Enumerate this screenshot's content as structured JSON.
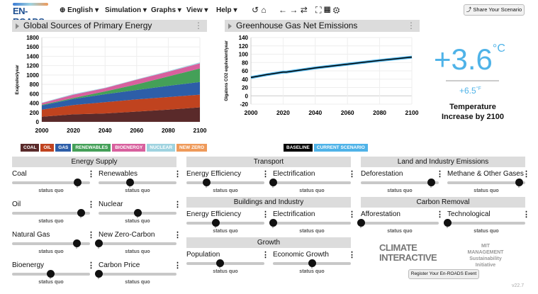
{
  "header": {
    "logo": "EN-ROADS",
    "language": "English",
    "menus": [
      "Simulation",
      "Graphs",
      "View",
      "Help"
    ],
    "share_label": "Share Your Scenario"
  },
  "energy_chart": {
    "title": "Global Sources of Primary Energy",
    "legend": [
      {
        "label": "COAL",
        "color": "#5a2a2a"
      },
      {
        "label": "OIL",
        "color": "#c0431f"
      },
      {
        "label": "GAS",
        "color": "#2d5ea8"
      },
      {
        "label": "RENEWABLES",
        "color": "#44a058"
      },
      {
        "label": "BIOENERGY",
        "color": "#d8609e"
      },
      {
        "label": "NUCLEAR",
        "color": "#9fd3e0"
      },
      {
        "label": "NEW ZERO",
        "color": "#ef9a5a"
      }
    ]
  },
  "emissions_chart": {
    "title": "Greenhouse Gas Net Emissions",
    "legend": [
      {
        "label": "BASELINE",
        "color": "#000000"
      },
      {
        "label": "CURRENT SCENARIO",
        "color": "#4fb3e8"
      }
    ]
  },
  "chart_data": [
    {
      "type": "area",
      "stacked": true,
      "title": "Global Sources of Primary Energy",
      "ylabel": "Exajoules/year",
      "x": [
        2000,
        2020,
        2040,
        2060,
        2080,
        2100
      ],
      "ylim": [
        0,
        1800
      ],
      "yticks": [
        0,
        200,
        400,
        600,
        800,
        1000,
        1200,
        1400,
        1600,
        1800
      ],
      "xticks": [
        2000,
        2020,
        2040,
        2060,
        2080,
        2100
      ],
      "grid": true,
      "series": [
        {
          "name": "COAL",
          "values": [
            110,
            160,
            180,
            220,
            260,
            310
          ]
        },
        {
          "name": "OIL",
          "values": [
            150,
            200,
            240,
            260,
            270,
            270
          ]
        },
        {
          "name": "GAS",
          "values": [
            90,
            130,
            170,
            200,
            240,
            270
          ]
        },
        {
          "name": "RENEWABLES",
          "values": [
            15,
            20,
            60,
            120,
            200,
            290
          ]
        },
        {
          "name": "BIOENERGY",
          "values": [
            35,
            70,
            70,
            100,
            100,
            110
          ]
        },
        {
          "name": "NUCLEAR",
          "values": [
            10,
            15,
            10,
            10,
            15,
            20
          ]
        },
        {
          "name": "NEW ZERO",
          "values": [
            0,
            0,
            0,
            0,
            0,
            0
          ]
        }
      ]
    },
    {
      "type": "line",
      "title": "Greenhouse Gas Net Emissions",
      "ylabel": "Gigatons CO2 equivalent/year",
      "x": [
        2000,
        2010,
        2020,
        2022,
        2040,
        2060,
        2080,
        2100
      ],
      "ylim": [
        -20,
        140
      ],
      "yticks": [
        -20,
        0,
        20,
        40,
        60,
        80,
        100,
        120,
        140
      ],
      "xticks": [
        2000,
        2020,
        2040,
        2060,
        2080,
        2100
      ],
      "grid": true,
      "series": [
        {
          "name": "CURRENT SCENARIO",
          "values": [
            44,
            51,
            57,
            57,
            67,
            76,
            85,
            93
          ]
        },
        {
          "name": "BASELINE",
          "values": [
            44,
            51,
            57,
            57,
            67,
            76,
            85,
            93
          ]
        }
      ]
    }
  ],
  "temperature": {
    "celsius": "+3.6",
    "c_unit": "°C",
    "fahrenheit": "+6.5",
    "f_unit": "°F",
    "caption": "Temperature Increase by 2100"
  },
  "sections": {
    "energy_supply": "Energy Supply",
    "transport": "Transport",
    "buildings": "Buildings and Industry",
    "growth": "Growth",
    "land": "Land and Industry Emissions",
    "removal": "Carbon Removal"
  },
  "status_quo": "status quo",
  "controls": [
    {
      "label": "Coal",
      "value": 0.84
    },
    {
      "label": "Renewables",
      "value": 0.4
    },
    {
      "label": "Oil",
      "value": 0.88
    },
    {
      "label": "Nuclear",
      "value": 0.5
    },
    {
      "label": "Natural Gas",
      "value": 0.83
    },
    {
      "label": "New Zero-Carbon",
      "value": 0
    },
    {
      "label": "Bioenergy",
      "value": 0.49
    },
    {
      "label": "Carbon Price",
      "value": 0
    },
    {
      "label": "Energy Efficiency",
      "value": 0.25
    },
    {
      "label": "Electrification",
      "value": 0
    },
    {
      "label": "Energy Efficiency",
      "value": 0.37
    },
    {
      "label": "Electrification",
      "value": 0
    },
    {
      "label": "Population",
      "value": 0.43
    },
    {
      "label": "Economic Growth",
      "value": 0.5
    },
    {
      "label": "Deforestation",
      "value": 0.9
    },
    {
      "label": "Methane & Other Gases",
      "value": 0.92
    },
    {
      "label": "Afforestation",
      "value": 0
    },
    {
      "label": "Technological",
      "value": 0
    }
  ],
  "footer": {
    "ci_logo": "CLIMATE INTERACTIVE",
    "mit_logo": "MIT MANAGEMENT Sustainability Initiative",
    "register_label": "Register Your En-ROADS Event",
    "version": "v22.7"
  }
}
